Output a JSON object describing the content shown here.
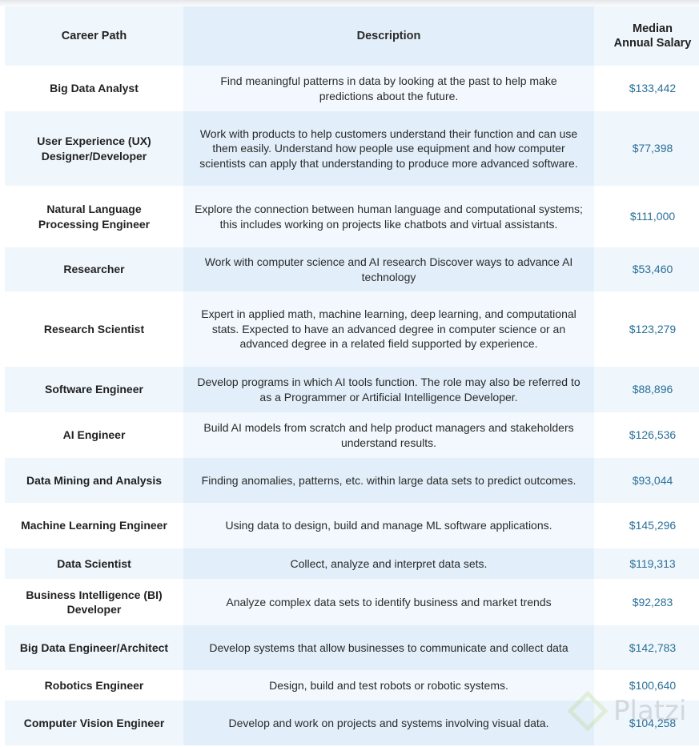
{
  "headers": {
    "career": "Career Path",
    "description": "Description",
    "salary": "Median Annual Salary"
  },
  "rows": [
    {
      "career": "Big Data Analyst",
      "description": "Find meaningful patterns in data by looking at the past to help make predictions about the future.",
      "salary": "$133,442"
    },
    {
      "career": "User Experience (UX) Designer/Developer",
      "description": "Work with products to help customers understand their function and can use them easily. Understand how people use equipment and how computer scientists can apply that understanding to produce more advanced software.",
      "salary": "$77,398"
    },
    {
      "career": "Natural Language Processing Engineer",
      "description": "Explore the connection between human language and computational systems; this includes working on projects like chatbots and virtual assistants.",
      "salary": "$111,000"
    },
    {
      "career": "Researcher",
      "description": "Work with computer science and AI research Discover ways to advance AI technology",
      "salary": "$53,460"
    },
    {
      "career": "Research Scientist",
      "description": "Expert in applied math, machine learning, deep learning, and computational stats. Expected to have an advanced degree in computer science or an advanced degree in a related field supported by experience.",
      "salary": "$123,279"
    },
    {
      "career": "Software Engineer",
      "description": "Develop programs in which AI tools function. The role may also be referred to as a Programmer or Artificial Intelligence Developer.",
      "salary": "$88,896"
    },
    {
      "career": "AI Engineer",
      "description": "Build AI models from scratch and help product managers and stakeholders understand results.",
      "salary": "$126,536"
    },
    {
      "career": "Data Mining and Analysis",
      "description": "Finding anomalies, patterns, etc. within large data sets to predict outcomes.",
      "salary": "$93,044"
    },
    {
      "career": "Machine Learning Engineer",
      "description": "Using data to design, build and manage ML software applications.",
      "salary": "$145,296"
    },
    {
      "career": "Data Scientist",
      "description": "Collect, analyze and interpret data sets.",
      "salary": "$119,313"
    },
    {
      "career": "Business Intelligence (BI) Developer",
      "description": "Analyze complex data sets to identify business and market trends",
      "salary": "$92,283"
    },
    {
      "career": "Big Data Engineer/Architect",
      "description": "Develop systems that allow businesses to communicate and collect data",
      "salary": "$142,783"
    },
    {
      "career": "Robotics Engineer",
      "description": "Design, build and test robots or robotic systems.",
      "salary": "$100,640"
    },
    {
      "career": "Computer Vision Engineer",
      "description": "Develop and work on projects and systems involving visual data.",
      "salary": "$104,258"
    }
  ],
  "watermark": "Platzi",
  "colors": {
    "salary": "#2a7099",
    "shade": "#eff6fc",
    "desc_shade": "#e2eef9"
  }
}
